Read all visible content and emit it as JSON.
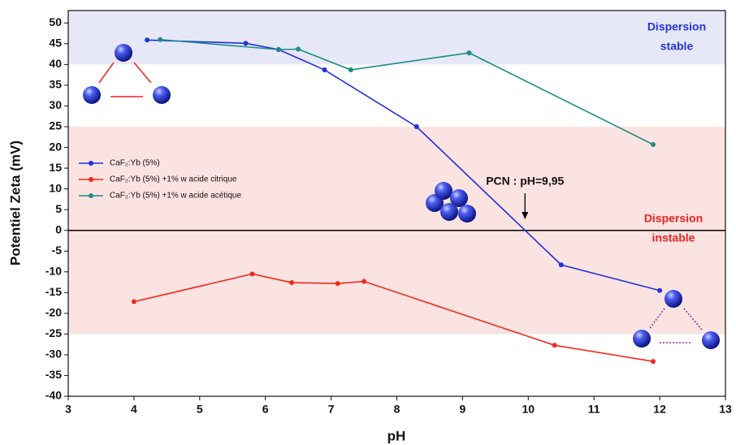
{
  "chart_data": {
    "type": "line",
    "x_label": "pH",
    "y_label": "Potentiel Zeta (mV)",
    "xlim": [
      3,
      13
    ],
    "ylim": [
      -40,
      53
    ],
    "xticks": [
      3,
      4,
      5,
      6,
      7,
      8,
      9,
      10,
      11,
      12,
      13
    ],
    "yticks": [
      -40,
      -35,
      -30,
      -25,
      -20,
      -15,
      -10,
      -5,
      0,
      5,
      10,
      15,
      20,
      25,
      30,
      35,
      40,
      45,
      50
    ],
    "zero_line": true,
    "bands": [
      {
        "from": 40,
        "to": 53,
        "color": "#e6e8f8"
      },
      {
        "from": -25,
        "to": 25,
        "color": "#fbe3e1"
      }
    ],
    "series": [
      {
        "name": "CaF₂:Yb (5%)",
        "color": "#1f2fe0",
        "x": [
          4.2,
          5.7,
          6.2,
          6.9,
          8.3,
          10.5,
          12
        ],
        "values": [
          45.9,
          45.1,
          43.6,
          38.7,
          25,
          -8.3,
          -14.5
        ]
      },
      {
        "name": "CaF₂:Yb (5%) +1% w acide citrique",
        "color": "#f02a20",
        "x": [
          4,
          5.8,
          6.4,
          7.1,
          7.5,
          10.4,
          11.9
        ],
        "values": [
          -17.2,
          -10.5,
          -12.6,
          -12.8,
          -12.3,
          -27.7,
          -31.6
        ]
      },
      {
        "name": "CaF₂:Yb (5%) +1% w acide acétique",
        "color": "#1a8c86",
        "x": [
          4.4,
          6.2,
          6.5,
          7.3,
          9.1,
          11.9
        ],
        "values": [
          46,
          43.6,
          43.7,
          38.7,
          42.8,
          20.7
        ]
      }
    ],
    "stable_label": {
      "lines": [
        "Dispersion",
        "stable"
      ],
      "color": "#2233dd"
    },
    "instable_label": {
      "lines": [
        "Dispersion",
        "instable"
      ],
      "color": "#ee2222"
    },
    "pcn": {
      "text": "PCN : pH=9,95",
      "x": 9.95
    }
  }
}
